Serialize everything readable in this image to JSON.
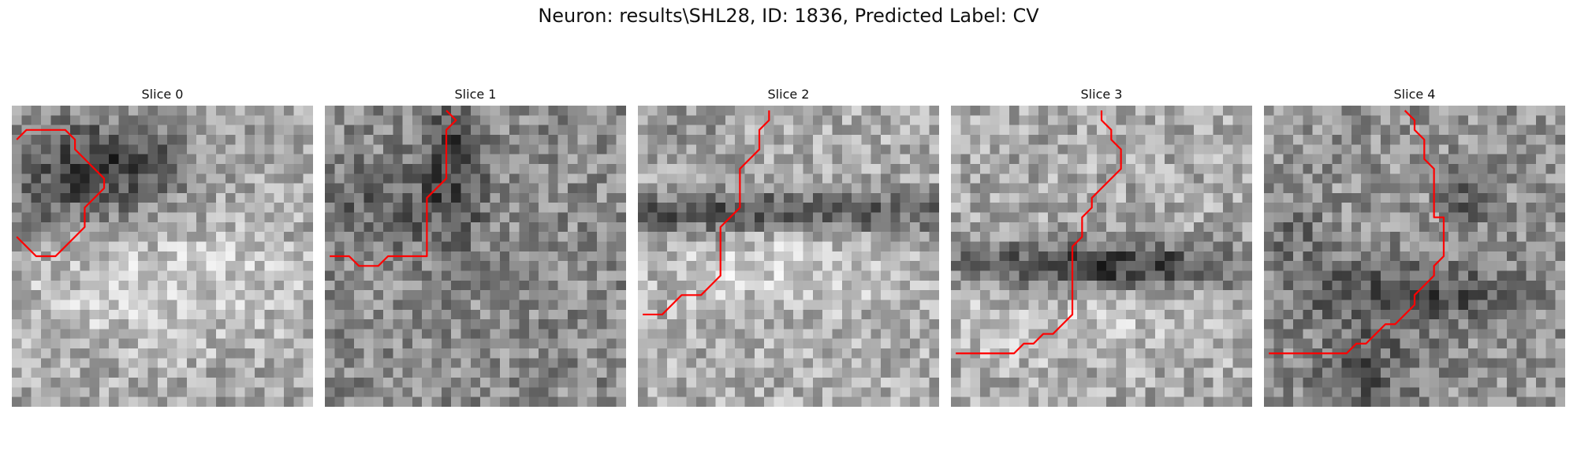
{
  "figure": {
    "title": "Neuron: results\\SHL28, ID: 1836, Predicted Label: CV",
    "colormap": "gray",
    "trace_color": "#ff0000"
  },
  "panels": [
    {
      "title": "Slice 0",
      "image_description": "grayscale pixel noise: dark blob in upper half, bright band below",
      "trace": [
        [
          0,
          3
        ],
        [
          1,
          2
        ],
        [
          2,
          2
        ],
        [
          3,
          2
        ],
        [
          4,
          2
        ],
        [
          5,
          2
        ],
        [
          6,
          3
        ],
        [
          6,
          4
        ],
        [
          7,
          5
        ],
        [
          8,
          6
        ],
        [
          9,
          7
        ],
        [
          9,
          8
        ],
        [
          8,
          9
        ],
        [
          7,
          10
        ],
        [
          7,
          11
        ],
        [
          7,
          12
        ],
        [
          6,
          13
        ],
        [
          5,
          14
        ],
        [
          4,
          15
        ],
        [
          3,
          15
        ],
        [
          2,
          15
        ],
        [
          1,
          14
        ],
        [
          0,
          13
        ]
      ]
    },
    {
      "title": "Slice 1",
      "image_description": "grayscale pixel noise with dark vertical structure in center-top",
      "trace": [
        [
          12,
          0
        ],
        [
          13,
          1
        ],
        [
          12,
          2
        ],
        [
          12,
          3
        ],
        [
          12,
          4
        ],
        [
          12,
          5
        ],
        [
          12,
          6
        ],
        [
          12,
          7
        ],
        [
          11,
          8
        ],
        [
          10,
          9
        ],
        [
          10,
          10
        ],
        [
          10,
          11
        ],
        [
          10,
          12
        ],
        [
          10,
          13
        ],
        [
          10,
          14
        ],
        [
          10,
          15
        ],
        [
          9,
          15
        ],
        [
          8,
          15
        ],
        [
          7,
          15
        ],
        [
          6,
          15
        ],
        [
          5,
          16
        ],
        [
          4,
          16
        ],
        [
          3,
          16
        ],
        [
          2,
          15
        ],
        [
          1,
          15
        ],
        [
          0,
          15
        ]
      ]
    },
    {
      "title": "Slice 2",
      "image_description": "grayscale pixel noise: dark horizontal band at middle, bright below",
      "trace": [
        [
          13,
          0
        ],
        [
          13,
          1
        ],
        [
          12,
          2
        ],
        [
          12,
          3
        ],
        [
          12,
          4
        ],
        [
          11,
          5
        ],
        [
          10,
          6
        ],
        [
          10,
          7
        ],
        [
          10,
          8
        ],
        [
          10,
          9
        ],
        [
          10,
          10
        ],
        [
          9,
          11
        ],
        [
          8,
          12
        ],
        [
          8,
          13
        ],
        [
          8,
          14
        ],
        [
          8,
          15
        ],
        [
          8,
          16
        ],
        [
          8,
          17
        ],
        [
          7,
          18
        ],
        [
          6,
          19
        ],
        [
          5,
          19
        ],
        [
          4,
          19
        ],
        [
          3,
          20
        ],
        [
          2,
          21
        ],
        [
          1,
          21
        ],
        [
          0,
          21
        ]
      ]
    },
    {
      "title": "Slice 3",
      "image_description": "grayscale pixel noise: dark horizontal band in the middle",
      "trace": [
        [
          15,
          0
        ],
        [
          15,
          1
        ],
        [
          16,
          2
        ],
        [
          16,
          3
        ],
        [
          17,
          4
        ],
        [
          17,
          5
        ],
        [
          17,
          6
        ],
        [
          16,
          7
        ],
        [
          15,
          8
        ],
        [
          14,
          9
        ],
        [
          14,
          10
        ],
        [
          13,
          11
        ],
        [
          13,
          12
        ],
        [
          13,
          13
        ],
        [
          12,
          14
        ],
        [
          12,
          15
        ],
        [
          12,
          16
        ],
        [
          12,
          17
        ],
        [
          12,
          18
        ],
        [
          12,
          19
        ],
        [
          12,
          20
        ],
        [
          12,
          21
        ],
        [
          11,
          22
        ],
        [
          10,
          23
        ],
        [
          9,
          23
        ],
        [
          8,
          24
        ],
        [
          7,
          24
        ],
        [
          6,
          25
        ],
        [
          5,
          25
        ],
        [
          4,
          25
        ],
        [
          3,
          25
        ],
        [
          2,
          25
        ],
        [
          1,
          25
        ],
        [
          0,
          25
        ]
      ]
    },
    {
      "title": "Slice 4",
      "image_description": "grayscale pixel noise with diagonal dark structures",
      "trace": [
        [
          14,
          0
        ],
        [
          15,
          1
        ],
        [
          15,
          2
        ],
        [
          16,
          3
        ],
        [
          16,
          4
        ],
        [
          16,
          5
        ],
        [
          17,
          6
        ],
        [
          17,
          7
        ],
        [
          17,
          8
        ],
        [
          17,
          9
        ],
        [
          17,
          10
        ],
        [
          17,
          11
        ],
        [
          18,
          11
        ],
        [
          18,
          12
        ],
        [
          18,
          13
        ],
        [
          18,
          14
        ],
        [
          18,
          15
        ],
        [
          17,
          16
        ],
        [
          17,
          17
        ],
        [
          16,
          18
        ],
        [
          15,
          19
        ],
        [
          15,
          20
        ],
        [
          14,
          21
        ],
        [
          13,
          22
        ],
        [
          12,
          22
        ],
        [
          11,
          23
        ],
        [
          10,
          24
        ],
        [
          9,
          24
        ],
        [
          8,
          25
        ],
        [
          7,
          25
        ],
        [
          6,
          25
        ],
        [
          5,
          25
        ],
        [
          4,
          25
        ],
        [
          3,
          25
        ],
        [
          2,
          25
        ],
        [
          1,
          25
        ],
        [
          0,
          25
        ]
      ]
    }
  ]
}
